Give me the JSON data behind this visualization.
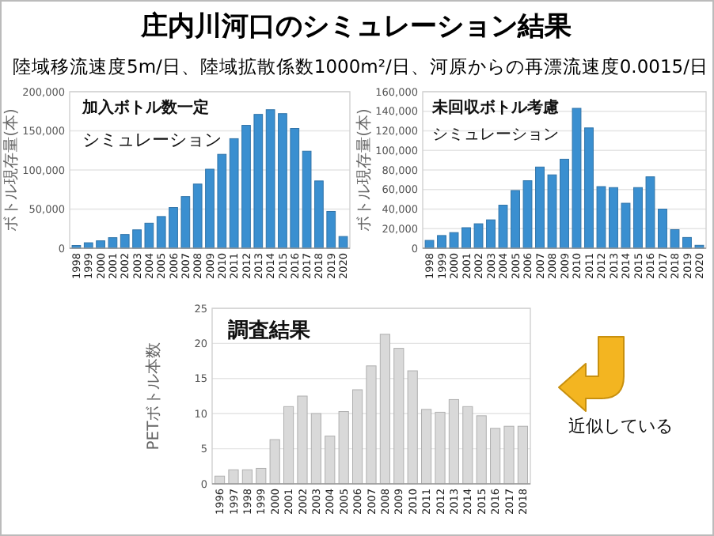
{
  "chart_data": [
    {
      "type": "bar",
      "title": "庄内川河口のシミュレーション結果",
      "subtitle": "陸域移流速度5m/日、陸域拡散係数1000m²/日、河原からの再漂流速度0.0015/日",
      "ylabel": "ボトル現存量(本)",
      "annotations": [
        "加入ボトル数一定",
        "シミュレーション"
      ],
      "categories": [
        "1998",
        "1999",
        "2000",
        "2001",
        "2002",
        "2003",
        "2004",
        "2005",
        "2006",
        "2007",
        "2008",
        "2009",
        "2010",
        "2011",
        "2012",
        "2013",
        "2014",
        "2015",
        "2016",
        "2017",
        "2018",
        "2019",
        "2020"
      ],
      "values": [
        3500,
        7000,
        9500,
        13500,
        17500,
        23500,
        32000,
        40500,
        52000,
        66000,
        82000,
        101000,
        120000,
        140000,
        157000,
        171000,
        177000,
        172000,
        153000,
        124000,
        86000,
        47000,
        15000
      ],
      "color": "#3a8fd0",
      "ylim": [
        0,
        200000
      ],
      "yticks": [
        0,
        {
          "value": 50000,
          "label": "50,000"
        },
        {
          "value": 100000,
          "label": "100,000"
        },
        {
          "value": 150000,
          "label": "150,000"
        },
        {
          "value": 200000,
          "label": "200,000"
        }
      ],
      "grid": "y"
    },
    {
      "type": "bar",
      "ylabel": "ボトル現存量(本)",
      "annotations": [
        "未回収ボトル考慮",
        "シミュレーション"
      ],
      "categories": [
        "1998",
        "1999",
        "2000",
        "2001",
        "2002",
        "2003",
        "2004",
        "2005",
        "2006",
        "2007",
        "2008",
        "2009",
        "2010",
        "2011",
        "2012",
        "2013",
        "2014",
        "2015",
        "2016",
        "2017",
        "2018",
        "2019",
        "2020"
      ],
      "values": [
        8000,
        13000,
        16000,
        21000,
        25000,
        29000,
        44000,
        59000,
        69000,
        83000,
        75000,
        91000,
        143000,
        123000,
        63000,
        62000,
        46000,
        62000,
        73000,
        40000,
        19000,
        11000,
        3000
      ],
      "color": "#3a8fd0",
      "ylim": [
        0,
        160000
      ],
      "yticks": [
        0,
        {
          "value": 20000,
          "label": "20,000"
        },
        {
          "value": 40000,
          "label": "40,000"
        },
        {
          "value": 60000,
          "label": "60,000"
        },
        {
          "value": 80000,
          "label": "80,000"
        },
        {
          "value": 100000,
          "label": "100,000"
        },
        {
          "value": 120000,
          "label": "120,000"
        },
        {
          "value": 140000,
          "label": "140,000"
        },
        {
          "value": 160000,
          "label": "160,000"
        }
      ],
      "grid": "y"
    },
    {
      "type": "bar",
      "ylabel": "PETボトル本数",
      "annotations": [
        "調査結果",
        "近似している"
      ],
      "categories": [
        "1996",
        "1997",
        "1998",
        "1999",
        "2000",
        "2001",
        "2002",
        "2003",
        "2004",
        "2005",
        "2006",
        "2007",
        "2008",
        "2009",
        "2010",
        "2011",
        "2012",
        "2013",
        "2014",
        "2015",
        "2016",
        "2017",
        "2018"
      ],
      "values": [
        1.1,
        2,
        2,
        2.2,
        6.3,
        11,
        12.5,
        10,
        6.8,
        10.3,
        13.4,
        16.8,
        21.3,
        19.3,
        16.1,
        10.6,
        10.2,
        12,
        11,
        9.7,
        7.9,
        8.2,
        8.2
      ],
      "color": "#d9d9d9",
      "ylim": [
        0,
        25
      ],
      "yticks": [
        0,
        5,
        10,
        15,
        20,
        25
      ],
      "grid": "y"
    }
  ]
}
